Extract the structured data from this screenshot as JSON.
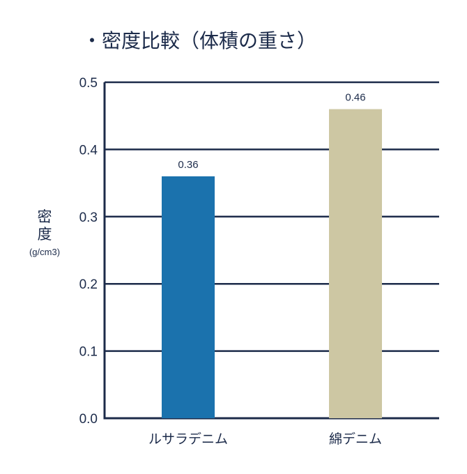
{
  "chart_data": {
    "type": "bar",
    "title": "・密度比較（体積の重さ）",
    "ylabel_chars": [
      "密",
      "度"
    ],
    "yunit": "(g/cm3)",
    "categories": [
      "ルサラデニム",
      "綿デニム"
    ],
    "values": [
      0.36,
      0.46
    ],
    "value_labels": [
      "0.36",
      "0.46"
    ],
    "yticks": [
      "0.0",
      "0.1",
      "0.2",
      "0.3",
      "0.4",
      "0.5"
    ],
    "ylim": [
      0,
      0.5
    ],
    "grid": true,
    "colors": {
      "bars": [
        "#1b72ad",
        "#cdc7a3"
      ],
      "axis": "#1c2b4a",
      "text": "#1c2b4a"
    }
  }
}
